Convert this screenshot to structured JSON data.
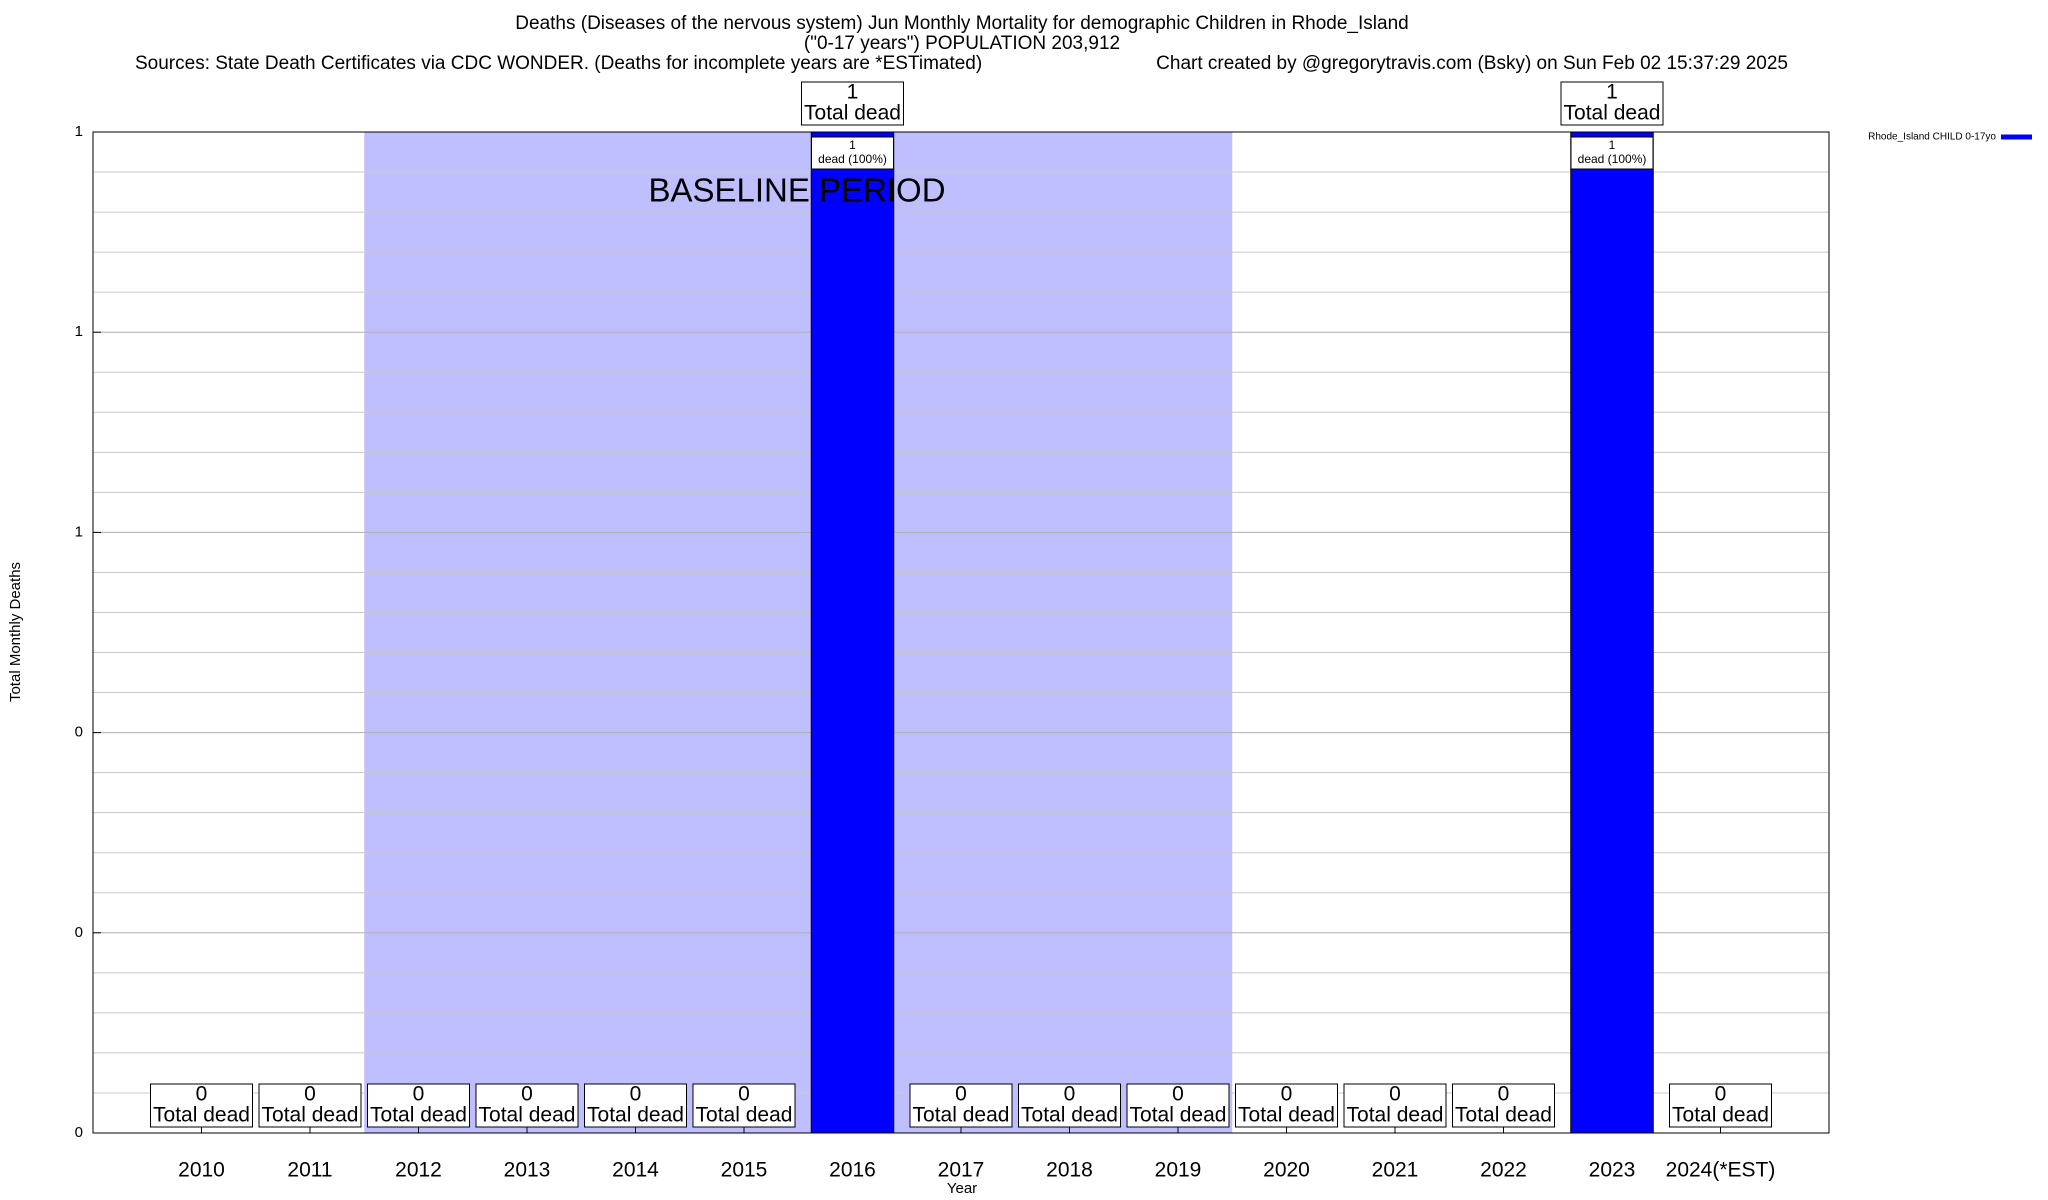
{
  "chart_data": {
    "type": "bar",
    "title": "Deaths (Diseases of the nervous system) Jun Monthly Mortality for demographic Children in Rhode_Island",
    "subtitle": "(\"0-17 years\") POPULATION 203,912",
    "source": "Sources: State Death Certificates via CDC WONDER. (Deaths for incomplete years are *ESTimated)",
    "credit": "Chart created by @gregorytravis.com (Bsky) on Sun Feb 02 15:37:29 2025",
    "x_label": "Year",
    "y_label": "Total Monthly Deaths",
    "categories": [
      "2010",
      "2011",
      "2012",
      "2013",
      "2014",
      "2015",
      "2016",
      "2017",
      "2018",
      "2019",
      "2020",
      "2021",
      "2022",
      "2023",
      "2024(*EST)"
    ],
    "series": [
      {
        "name": "Rhode_Island CHILD 0-17yo",
        "color": "#0000ff",
        "values": [
          0,
          0,
          0,
          0,
          0,
          0,
          1,
          0,
          0,
          0,
          0,
          0,
          0,
          1,
          0
        ],
        "share_labels": [
          null,
          null,
          null,
          null,
          null,
          null,
          "dead (100%)",
          null,
          null,
          null,
          null,
          null,
          null,
          "dead (100%)",
          null
        ]
      }
    ],
    "total_label": "Total dead",
    "baseline": {
      "label": "BASELINE PERIOD",
      "start": "2012",
      "end": "2019",
      "color": "#bfbfff"
    },
    "ylim": [
      0,
      1
    ],
    "yticks": [
      {
        "value": 0,
        "label": "0"
      },
      {
        "value": 0.2,
        "label": "0"
      },
      {
        "value": 0.4,
        "label": "0"
      },
      {
        "value": 0.6,
        "label": "1"
      },
      {
        "value": 0.8,
        "label": "1"
      },
      {
        "value": 1,
        "label": "1"
      }
    ],
    "y_minor_ticks": [
      0.04,
      0.08,
      0.12,
      0.16,
      0.24,
      0.28,
      0.32,
      0.36,
      0.44,
      0.48,
      0.52,
      0.56,
      0.64,
      0.68,
      0.72,
      0.76,
      0.84,
      0.88,
      0.92,
      0.96
    ],
    "grid": true,
    "legend": "top-right"
  }
}
